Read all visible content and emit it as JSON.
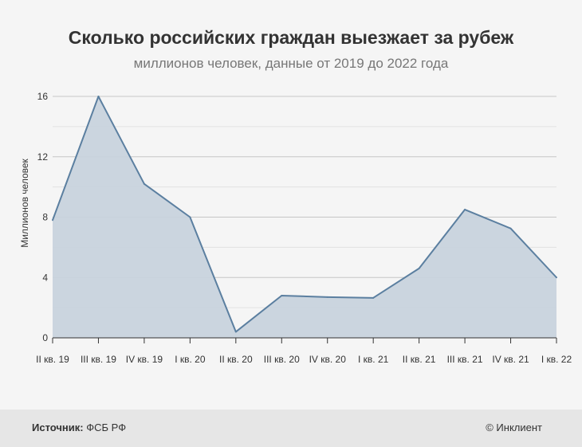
{
  "header": {
    "title": "Сколько российских граждан выезжает за рубеж",
    "subtitle": "миллионов человек, данные от 2019 до 2022 года"
  },
  "footer": {
    "source_label": "Источник:",
    "source_value": "ФСБ РФ",
    "credit": "© Инклиент"
  },
  "chart_data": {
    "type": "area",
    "title": "Сколько российских граждан выезжает за рубеж",
    "subtitle": "миллионов человек, данные от 2019 до 2022 года",
    "xlabel": "",
    "ylabel": "Миллионов человек",
    "categories": [
      "II кв. 19",
      "III кв. 19",
      "IV кв. 19",
      "I кв. 20",
      "II кв. 20",
      "III кв. 20",
      "IV кв. 20",
      "I кв. 21",
      "II кв. 21",
      "III кв. 21",
      "IV кв. 21",
      "I кв. 22"
    ],
    "series": [
      {
        "values": [
          7.8,
          16.0,
          10.2,
          8.0,
          0.4,
          2.8,
          2.7,
          2.65,
          4.6,
          8.5,
          7.25,
          4.0
        ],
        "color": "#5b7fa0",
        "fill": "#c8d3dd"
      }
    ],
    "ylim": [
      0,
      16
    ],
    "yticks": [
      0,
      4,
      8,
      12,
      16
    ],
    "grid": true,
    "legend": "none"
  }
}
